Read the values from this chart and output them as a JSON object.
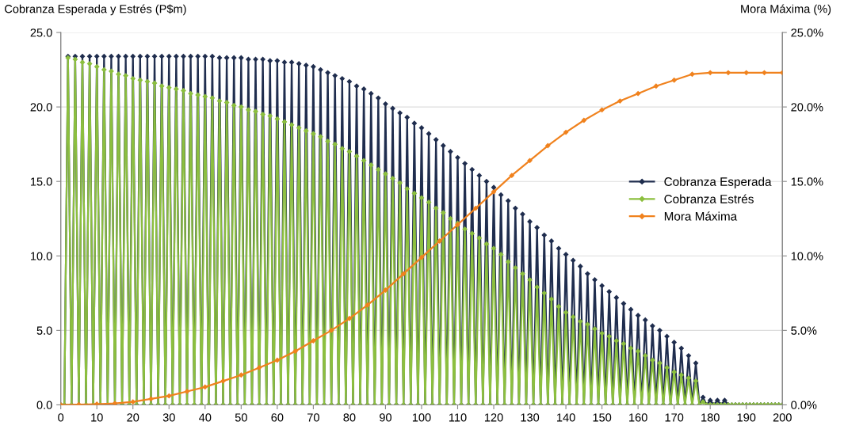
{
  "chart_data": {
    "type": "line",
    "ylabel": "Cobranza Esperada y Estrés (P$m)",
    "y2label": "Mora Máxima (%)",
    "x": [
      0,
      1,
      2,
      3,
      4,
      5,
      6,
      7,
      8,
      9,
      10,
      11,
      12,
      13,
      14,
      15,
      16,
      17,
      18,
      19,
      20,
      21,
      22,
      23,
      24,
      25,
      26,
      27,
      28,
      29,
      30,
      31,
      32,
      33,
      34,
      35,
      36,
      37,
      38,
      39,
      40,
      41,
      42,
      43,
      44,
      45,
      46,
      47,
      48,
      49,
      50,
      51,
      52,
      53,
      54,
      55,
      56,
      57,
      58,
      59,
      60,
      61,
      62,
      63,
      64,
      65,
      66,
      67,
      68,
      69,
      70,
      71,
      72,
      73,
      74,
      75,
      76,
      77,
      78,
      79,
      80,
      81,
      82,
      83,
      84,
      85,
      86,
      87,
      88,
      89,
      90,
      91,
      92,
      93,
      94,
      95,
      96,
      97,
      98,
      99,
      100,
      101,
      102,
      103,
      104,
      105,
      106,
      107,
      108,
      109,
      110,
      111,
      112,
      113,
      114,
      115,
      116,
      117,
      118,
      119,
      120,
      121,
      122,
      123,
      124,
      125,
      126,
      127,
      128,
      129,
      130,
      131,
      132,
      133,
      134,
      135,
      136,
      137,
      138,
      139,
      140,
      141,
      142,
      143,
      144,
      145,
      146,
      147,
      148,
      149,
      150,
      151,
      152,
      153,
      154,
      155,
      156,
      157,
      158,
      159,
      160,
      161,
      162,
      163,
      164,
      165,
      166,
      167,
      168,
      169,
      170,
      171,
      172,
      173,
      174,
      175,
      176,
      177,
      178,
      179,
      180,
      181,
      182,
      183,
      184,
      185,
      186,
      187,
      188,
      189,
      190,
      191,
      192,
      193,
      194,
      195,
      196,
      197,
      198,
      199,
      200
    ],
    "series": [
      {
        "name": "Cobranza Esperada",
        "color": "#1f2d4e",
        "values": [
          0,
          0,
          23.4,
          0,
          23.4,
          0,
          23.4,
          0,
          23.4,
          0,
          23.4,
          0,
          23.4,
          0,
          23.4,
          0,
          23.4,
          0,
          23.4,
          0,
          23.4,
          0,
          23.4,
          0,
          23.4,
          0,
          23.4,
          0,
          23.4,
          0,
          23.4,
          0,
          23.4,
          0,
          23.4,
          0,
          23.4,
          0,
          23.4,
          0,
          23.4,
          0,
          23.4,
          0,
          23.3,
          0,
          23.3,
          0,
          23.3,
          0,
          23.3,
          0,
          23.2,
          0,
          23.2,
          0,
          23.2,
          0,
          23.1,
          0,
          23.1,
          0,
          23.0,
          0,
          23.0,
          0,
          22.9,
          0,
          22.8,
          0,
          22.7,
          0,
          22.5,
          0,
          22.3,
          0,
          22.1,
          0,
          21.9,
          0,
          21.7,
          0,
          21.4,
          0,
          21.2,
          0,
          20.9,
          0,
          20.6,
          0,
          20.2,
          0,
          19.9,
          0,
          19.6,
          0,
          19.3,
          0,
          18.9,
          0,
          18.6,
          0,
          18.2,
          0,
          17.8,
          0,
          17.4,
          0,
          17.0,
          0,
          16.6,
          0,
          16.2,
          0,
          15.8,
          0,
          15.4,
          0,
          15.0,
          0,
          14.6,
          0,
          14.1,
          0,
          13.7,
          0,
          13.2,
          0,
          12.8,
          0,
          12.3,
          0,
          11.9,
          0,
          11.4,
          0,
          11.0,
          0,
          10.5,
          0,
          10.1,
          0,
          9.7,
          0,
          9.3,
          0,
          8.8,
          0,
          8.4,
          0,
          8.0,
          0,
          7.6,
          0,
          7.2,
          0,
          6.8,
          0,
          6.4,
          0,
          6.0,
          0,
          5.7,
          0,
          5.3,
          0,
          5.0,
          0,
          4.6,
          0,
          4.2,
          0,
          3.8,
          0,
          3.3,
          0,
          2.8,
          0,
          0.5,
          0,
          0.3,
          0,
          0.3,
          0,
          0.3,
          0,
          0,
          0,
          0,
          0,
          0,
          0,
          0,
          0,
          0,
          0,
          0,
          0,
          0,
          0,
          0
        ]
      },
      {
        "name": "Cobranza Estrés",
        "color": "#8cbf3f",
        "values": [
          0,
          0,
          23.3,
          0,
          23.2,
          0,
          23.0,
          0,
          22.9,
          0,
          22.7,
          0,
          22.5,
          0,
          22.4,
          0,
          22.2,
          0,
          22.1,
          0,
          21.9,
          0,
          21.8,
          0,
          21.7,
          0,
          21.6,
          0,
          21.4,
          0,
          21.3,
          0,
          21.2,
          0,
          21.1,
          0,
          20.9,
          0,
          20.8,
          0,
          20.7,
          0,
          20.6,
          0,
          20.4,
          0,
          20.3,
          0,
          20.1,
          0,
          20.0,
          0,
          19.8,
          0,
          19.7,
          0,
          19.5,
          0,
          19.4,
          0,
          19.2,
          0,
          19.0,
          0,
          18.8,
          0,
          18.6,
          0,
          18.4,
          0,
          18.2,
          0,
          18.0,
          0,
          17.7,
          0,
          17.5,
          0,
          17.2,
          0,
          17.0,
          0,
          16.7,
          0,
          16.4,
          0,
          16.1,
          0,
          15.8,
          0,
          15.5,
          0,
          15.2,
          0,
          14.9,
          0,
          14.5,
          0,
          14.2,
          0,
          13.9,
          0,
          13.6,
          0,
          13.2,
          0,
          12.9,
          0,
          12.5,
          0,
          12.2,
          0,
          11.8,
          0,
          11.5,
          0,
          11.2,
          0,
          10.8,
          0,
          10.5,
          0,
          10.1,
          0,
          9.6,
          0,
          9.2,
          0,
          8.8,
          0,
          8.4,
          0,
          7.9,
          0,
          7.5,
          0,
          7.1,
          0,
          6.6,
          0,
          6.2,
          0,
          5.9,
          0,
          5.6,
          0,
          5.4,
          0,
          5.1,
          0,
          4.8,
          0,
          4.6,
          0,
          4.3,
          0,
          4.1,
          0,
          3.8,
          0,
          3.6,
          0,
          3.3,
          0,
          3.0,
          0,
          2.8,
          0,
          2.5,
          0,
          2.2,
          0,
          2.0,
          0,
          1.8,
          0,
          1.6,
          0,
          0.2,
          0,
          0,
          0,
          0,
          0,
          0,
          0,
          0,
          0,
          0,
          0,
          0,
          0,
          0,
          0,
          0,
          0,
          0,
          0,
          0,
          0,
          0
        ]
      },
      {
        "name": "Mora Máxima",
        "color": "#f0821e",
        "axis": "y2",
        "x": [
          0,
          5,
          10,
          15,
          20,
          25,
          30,
          35,
          40,
          45,
          50,
          55,
          60,
          65,
          70,
          75,
          80,
          85,
          90,
          95,
          100,
          105,
          110,
          115,
          120,
          125,
          130,
          135,
          140,
          145,
          150,
          155,
          160,
          165,
          170,
          175,
          180,
          185,
          190,
          195,
          200
        ],
        "values": [
          0,
          0.02,
          0.05,
          0.1,
          0.2,
          0.4,
          0.6,
          0.9,
          1.2,
          1.6,
          2.0,
          2.5,
          3.0,
          3.6,
          4.3,
          5.0,
          5.8,
          6.7,
          7.7,
          8.8,
          9.9,
          11.0,
          12.1,
          13.2,
          14.3,
          15.4,
          16.4,
          17.4,
          18.3,
          19.1,
          19.8,
          20.4,
          20.9,
          21.4,
          21.8,
          22.2,
          22.3,
          22.3,
          22.3,
          22.3,
          22.3
        ]
      }
    ],
    "xlim": [
      0,
      200
    ],
    "xticks": [
      0,
      10,
      20,
      30,
      40,
      50,
      60,
      70,
      80,
      90,
      100,
      110,
      120,
      130,
      140,
      150,
      160,
      170,
      180,
      190,
      200
    ],
    "ylim": [
      0,
      25
    ],
    "yticks": [
      {
        "value": 0,
        "label": "0.0"
      },
      {
        "value": 5,
        "label": "5.0"
      },
      {
        "value": 10,
        "label": "10.0"
      },
      {
        "value": 15,
        "label": "15.0"
      },
      {
        "value": 20,
        "label": "20.0"
      },
      {
        "value": 25,
        "label": "25.0"
      }
    ],
    "y2lim": [
      0,
      25
    ],
    "y2ticks": [
      {
        "value": 0,
        "label": "0.0%"
      },
      {
        "value": 5,
        "label": "5.0%"
      },
      {
        "value": 10,
        "label": "10.0%"
      },
      {
        "value": 15,
        "label": "15.0%"
      },
      {
        "value": 20,
        "label": "20.0%"
      },
      {
        "value": 25,
        "label": "25.0%"
      }
    ],
    "grid": "y",
    "legend": "right",
    "marker": "diamond",
    "line_style": "solid"
  }
}
